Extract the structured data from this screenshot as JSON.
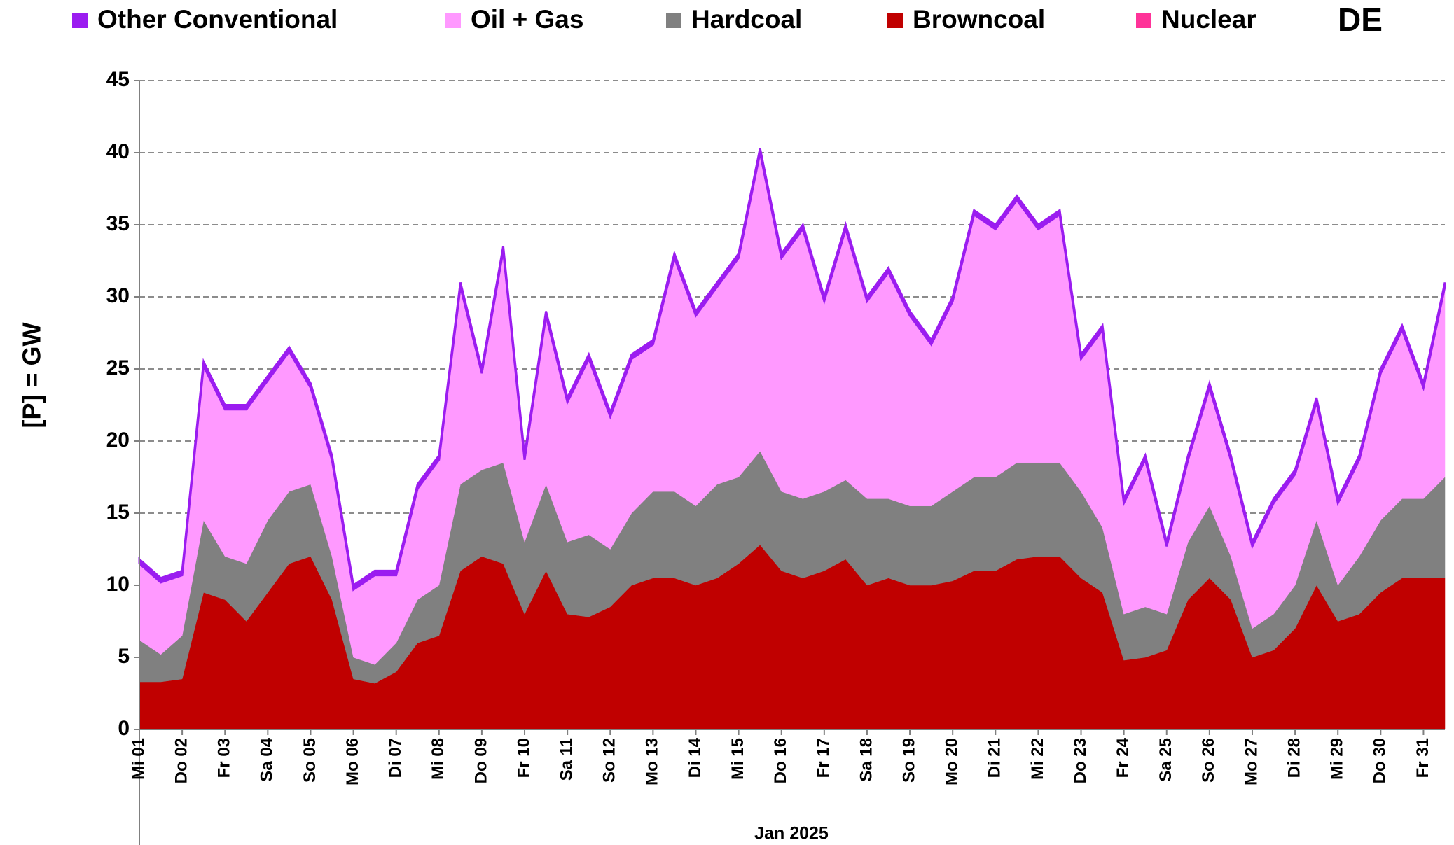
{
  "chart_data": {
    "type": "stacked_area",
    "annotation": "DE",
    "ylabel": "[P] =  GW",
    "xlabel": "Jan 2025",
    "x": [
      1,
      1.5,
      2,
      2.5,
      3,
      3.5,
      4,
      4.5,
      5,
      5.5,
      6,
      6.5,
      7,
      7.5,
      8,
      8.5,
      9,
      9.5,
      10,
      10.5,
      11,
      11.5,
      12,
      12.5,
      13,
      13.5,
      14,
      14.5,
      15,
      15.5,
      16,
      16.5,
      17,
      17.5,
      18,
      18.5,
      19,
      19.5,
      20,
      20.5,
      21,
      21.5,
      22,
      22.5,
      23,
      23.5,
      24,
      24.5,
      25,
      25.5,
      26,
      26.5,
      27,
      27.5,
      28,
      28.5,
      29,
      29.5,
      30,
      30.5,
      31,
      31.5
    ],
    "series": [
      {
        "name": "Other Conventional",
        "color": "#9b1cf0",
        "values": [
          0.3,
          0.3,
          0.3,
          0.3,
          0.3,
          0.3,
          0.3,
          0.3,
          0.3,
          0.3,
          0.3,
          0.3,
          0.3,
          0.3,
          0.3,
          0.3,
          0.3,
          0.3,
          0.3,
          0.3,
          0.3,
          0.3,
          0.3,
          0.3,
          0.3,
          0.3,
          0.3,
          0.3,
          0.3,
          0.3,
          0.3,
          0.3,
          0.3,
          0.3,
          0.3,
          0.3,
          0.3,
          0.3,
          0.3,
          0.3,
          0.3,
          0.3,
          0.3,
          0.3,
          0.3,
          0.3,
          0.3,
          0.3,
          0.3,
          0.3,
          0.3,
          0.3,
          0.3,
          0.3,
          0.3,
          0.3,
          0.3,
          0.3,
          0.3,
          0.3,
          0.3,
          0.3
        ]
      },
      {
        "name": "Oil + Gas",
        "color": "#ff99ff",
        "values": [
          5.3,
          5.0,
          4.2,
          10.7,
          10.2,
          10.7,
          9.7,
          9.7,
          6.7,
          6.7,
          4.7,
          6.2,
          4.7,
          7.7,
          8.7,
          13.7,
          6.7,
          14.7,
          5.7,
          11.7,
          9.7,
          12.2,
          9.2,
          10.7,
          10.2,
          16.2,
          13.2,
          13.7,
          15.2,
          20.7,
          16.2,
          18.7,
          13.2,
          17.4,
          13.7,
          15.7,
          13.2,
          11.2,
          13.2,
          18.2,
          17.2,
          18.2,
          16.2,
          17.2,
          9.2,
          13.7,
          7.7,
          10.2,
          4.7,
          5.7,
          8.2,
          6.7,
          5.7,
          7.7,
          7.7,
          8.2,
          5.7,
          6.7,
          10.2,
          11.7,
          7.7,
          13.2
        ]
      },
      {
        "name": "Hardcoal",
        "color": "#808080",
        "values": [
          2.9,
          1.9,
          3.0,
          5.0,
          3.0,
          4.0,
          5.0,
          5.0,
          5.0,
          3.0,
          1.5,
          1.3,
          2.0,
          3.0,
          3.5,
          6.0,
          6.0,
          7.0,
          5.0,
          6.0,
          5.0,
          5.7,
          4.0,
          5.0,
          6.0,
          6.0,
          5.5,
          6.5,
          6.0,
          6.5,
          5.5,
          5.5,
          5.5,
          5.5,
          6.0,
          5.5,
          5.5,
          5.5,
          6.2,
          6.5,
          6.5,
          6.7,
          6.5,
          6.5,
          6.0,
          4.5,
          3.2,
          3.5,
          2.5,
          4.0,
          5.0,
          3.0,
          2.0,
          2.5,
          3.0,
          4.5,
          2.5,
          4.0,
          5.0,
          5.5,
          5.5,
          7.0
        ]
      },
      {
        "name": "Browncoal",
        "color": "#c00000",
        "values": [
          3.3,
          3.3,
          3.5,
          9.5,
          9.0,
          7.5,
          9.5,
          11.5,
          12.0,
          9.0,
          3.5,
          3.2,
          4.0,
          6.0,
          6.5,
          11.0,
          12.0,
          11.5,
          8.0,
          11.0,
          8.0,
          7.8,
          8.5,
          10.0,
          10.5,
          10.5,
          10.0,
          10.5,
          11.5,
          12.8,
          11.0,
          10.5,
          11.0,
          11.8,
          10.0,
          10.5,
          10.0,
          10.0,
          10.3,
          11.0,
          11.0,
          11.8,
          12.0,
          12.0,
          10.5,
          9.5,
          4.8,
          5.0,
          5.5,
          9.0,
          10.5,
          9.0,
          5.0,
          5.5,
          7.0,
          10.0,
          7.5,
          8.0,
          9.5,
          10.5,
          10.5,
          10.5
        ]
      },
      {
        "name": "Nuclear",
        "color": "#ff3399",
        "values": [
          0,
          0,
          0,
          0,
          0,
          0,
          0,
          0,
          0,
          0,
          0,
          0,
          0,
          0,
          0,
          0,
          0,
          0,
          0,
          0,
          0,
          0,
          0,
          0,
          0,
          0,
          0,
          0,
          0,
          0,
          0,
          0,
          0,
          0,
          0,
          0,
          0,
          0,
          0,
          0,
          0,
          0,
          0,
          0,
          0,
          0,
          0,
          0,
          0,
          0,
          0,
          0,
          0,
          0,
          0,
          0,
          0,
          0,
          0,
          0,
          0,
          0
        ]
      }
    ],
    "xlim": [
      1,
      31.5
    ],
    "xticks": [
      {
        "value": 1,
        "label": "Mi 01"
      },
      {
        "value": 2,
        "label": "Do 02"
      },
      {
        "value": 3,
        "label": "Fr 03"
      },
      {
        "value": 4,
        "label": "Sa 04"
      },
      {
        "value": 5,
        "label": "So 05"
      },
      {
        "value": 6,
        "label": "Mo 06"
      },
      {
        "value": 7,
        "label": "Di 07"
      },
      {
        "value": 8,
        "label": "Mi 08"
      },
      {
        "value": 9,
        "label": "Do 09"
      },
      {
        "value": 10,
        "label": "Fr 10"
      },
      {
        "value": 11,
        "label": "Sa 11"
      },
      {
        "value": 12,
        "label": "So 12"
      },
      {
        "value": 13,
        "label": "Mo 13"
      },
      {
        "value": 14,
        "label": "Di 14"
      },
      {
        "value": 15,
        "label": "Mi 15"
      },
      {
        "value": 16,
        "label": "Do 16"
      },
      {
        "value": 17,
        "label": "Fr 17"
      },
      {
        "value": 18,
        "label": "Sa 18"
      },
      {
        "value": 19,
        "label": "So 19"
      },
      {
        "value": 20,
        "label": "Mo 20"
      },
      {
        "value": 21,
        "label": "Di 21"
      },
      {
        "value": 22,
        "label": "Mi 22"
      },
      {
        "value": 23,
        "label": "Do 23"
      },
      {
        "value": 24,
        "label": "Fr 24"
      },
      {
        "value": 25,
        "label": "Sa 25"
      },
      {
        "value": 26,
        "label": "So 26"
      },
      {
        "value": 27,
        "label": "Mo 27"
      },
      {
        "value": 28,
        "label": "Di 28"
      },
      {
        "value": 29,
        "label": "Mi 29"
      },
      {
        "value": 30,
        "label": "Do 30"
      },
      {
        "value": 31,
        "label": "Fr 31"
      }
    ],
    "ylim": [
      0,
      45
    ],
    "yticks": [
      0,
      5,
      10,
      15,
      20,
      25,
      30,
      35,
      40,
      45
    ],
    "grid": true
  }
}
